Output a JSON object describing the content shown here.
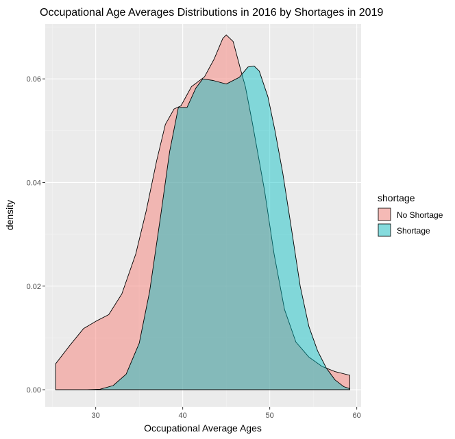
{
  "chart_data": {
    "type": "area",
    "title": "Occupational Age Averages Distributions in 2016 by Shortages in 2019",
    "xlabel": "Occupational Average Ages",
    "ylabel": "density",
    "xlim": [
      24.2,
      60.5
    ],
    "ylim": [
      -0.0033,
      0.0706
    ],
    "x_ticks": [
      30,
      40,
      50,
      60
    ],
    "y_ticks": [
      0.0,
      0.02,
      0.04,
      0.06
    ],
    "y_tick_labels": [
      "0.00",
      "0.02",
      "0.04",
      "0.06"
    ],
    "grid": true,
    "legend": {
      "title": "shortage",
      "position": "right",
      "entries": [
        "No Shortage",
        "Shortage"
      ]
    },
    "series": [
      {
        "name": "No Shortage",
        "color": "#F8766D",
        "x": [
          25.4,
          27,
          28.6,
          30,
          31.5,
          33,
          34.6,
          35.8,
          37,
          38,
          39,
          39.8,
          41,
          42.5,
          43.6,
          44.6,
          45,
          45.8,
          46.7,
          47.2,
          48,
          49.4,
          50.5,
          51.7,
          53,
          54.5,
          56,
          57.5,
          59.2
        ],
        "y": [
          0.005,
          0.0085,
          0.0118,
          0.0132,
          0.0145,
          0.0185,
          0.0262,
          0.0345,
          0.0442,
          0.0512,
          0.0542,
          0.0548,
          0.0585,
          0.0604,
          0.0638,
          0.0678,
          0.0685,
          0.0672,
          0.0615,
          0.0585,
          0.0515,
          0.0385,
          0.0262,
          0.0155,
          0.0092,
          0.0063,
          0.0045,
          0.0035,
          0.0028
        ]
      },
      {
        "name": "Shortage",
        "color": "#00BFC4",
        "x": [
          25.4,
          27,
          29,
          30.5,
          32,
          33.5,
          35,
          36.2,
          37.5,
          38.5,
          39.5,
          40.5,
          41.5,
          42.3,
          43.5,
          45,
          46.5,
          47.5,
          48.2,
          48.8,
          49.8,
          50.6,
          51.5,
          52.5,
          53.5,
          54.5,
          55.5,
          56.5,
          57.5,
          58.5,
          59.2
        ],
        "y": [
          0,
          0,
          0,
          0.0001,
          0.0008,
          0.003,
          0.009,
          0.019,
          0.034,
          0.046,
          0.0545,
          0.0545,
          0.0582,
          0.06,
          0.0597,
          0.059,
          0.0603,
          0.0623,
          0.0625,
          0.0615,
          0.0565,
          0.05,
          0.0418,
          0.031,
          0.02,
          0.0122,
          0.0075,
          0.0042,
          0.0019,
          0.0006,
          0.0002
        ]
      }
    ]
  }
}
